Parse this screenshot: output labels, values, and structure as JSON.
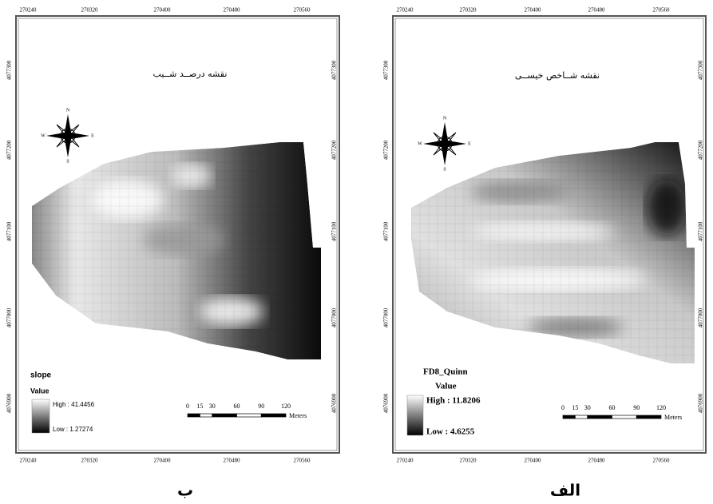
{
  "panels": [
    {
      "title": "نقشه درصــد شــیب",
      "legend": {
        "layer": "slope",
        "field": "Value",
        "high": "High : 41.4456",
        "low": "Low : 1.27274"
      },
      "caption": "ب"
    },
    {
      "title": "نقشه شــاخص خیســی",
      "legend": {
        "layer": "FD8_Quinn",
        "field": "Value",
        "high": "High : 11.8206",
        "low": "Low : 4.6255"
      },
      "caption": "الف"
    }
  ],
  "x_labels": [
    "270240",
    "270320",
    "270400",
    "270480",
    "270560"
  ],
  "y_labels": [
    "4077300",
    "4077200",
    "4077100",
    "4077000",
    "4076900"
  ],
  "scale": {
    "ticks": [
      0,
      15,
      30,
      60,
      90,
      120
    ],
    "unit": "Meters"
  },
  "north": {
    "n": "N",
    "s": "S",
    "e": "E",
    "w": "W"
  }
}
